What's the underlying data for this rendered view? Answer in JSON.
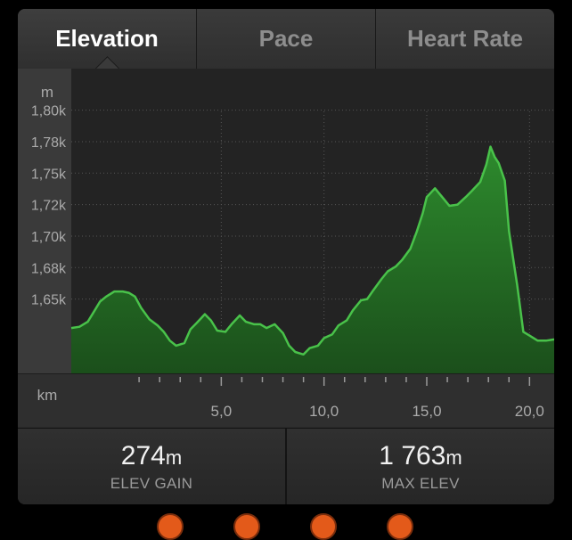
{
  "tabs": [
    {
      "label": "Elevation",
      "active": true
    },
    {
      "label": "Pace",
      "active": false
    },
    {
      "label": "Heart Rate",
      "active": false
    }
  ],
  "chart_data": {
    "type": "area",
    "ylabel": "m",
    "xlabel": "km",
    "y_ticks": [
      1650,
      1675,
      1700,
      1725,
      1750,
      1775,
      1800
    ],
    "y_tick_labels": [
      "1,65k",
      "1,68k",
      "1,70k",
      "1,72k",
      "1,75k",
      "1,78k",
      "1,80k"
    ],
    "x_ticks": [
      5,
      10,
      15,
      20
    ],
    "x_tick_labels": [
      "5,0",
      "10,0",
      "15,0",
      "20,0"
    ],
    "xlim": [
      -2.3,
      21.2
    ],
    "ylim": [
      1591,
      1833
    ],
    "grid": true,
    "fill_color": "#2d8a2d",
    "line_color": "#49c24a",
    "x": [
      -2.3,
      -1.9,
      -1.5,
      -1.2,
      -0.9,
      -0.6,
      -0.2,
      0.2,
      0.5,
      0.8,
      1.1,
      1.5,
      1.9,
      2.2,
      2.5,
      2.8,
      3.2,
      3.5,
      3.8,
      4.2,
      4.5,
      4.8,
      5.2,
      5.5,
      5.9,
      6.2,
      6.6,
      6.9,
      7.2,
      7.6,
      8.0,
      8.3,
      8.6,
      9.0,
      9.3,
      9.7,
      10.0,
      10.4,
      10.7,
      11.1,
      11.4,
      11.8,
      12.1,
      12.4,
      12.8,
      13.1,
      13.5,
      13.8,
      14.2,
      14.5,
      14.8,
      15.0,
      15.4,
      15.8,
      16.1,
      16.5,
      16.9,
      17.2,
      17.6,
      17.9,
      18.1,
      18.3,
      18.5,
      18.8,
      19.0,
      19.4,
      19.7,
      20.0,
      20.4,
      20.8,
      21.2
    ],
    "y": [
      1627,
      1628,
      1632,
      1640,
      1648,
      1652,
      1656,
      1656,
      1655,
      1652,
      1643,
      1634,
      1629,
      1624,
      1617,
      1613,
      1615,
      1626,
      1631,
      1638,
      1633,
      1625,
      1624,
      1630,
      1637,
      1632,
      1630,
      1630,
      1627,
      1630,
      1623,
      1613,
      1608,
      1606,
      1611,
      1613,
      1619,
      1622,
      1629,
      1633,
      1641,
      1649,
      1650,
      1657,
      1666,
      1672,
      1676,
      1681,
      1690,
      1703,
      1718,
      1731,
      1738,
      1730,
      1724,
      1725,
      1731,
      1736,
      1743,
      1757,
      1771,
      1763,
      1758,
      1744,
      1704,
      1661,
      1624,
      1621,
      1617,
      1617,
      1618
    ]
  },
  "stats": [
    {
      "value": "274",
      "unit": "m",
      "label": "ELEV GAIN"
    },
    {
      "value": "1 763",
      "unit": "m",
      "label": "MAX ELEV"
    }
  ]
}
